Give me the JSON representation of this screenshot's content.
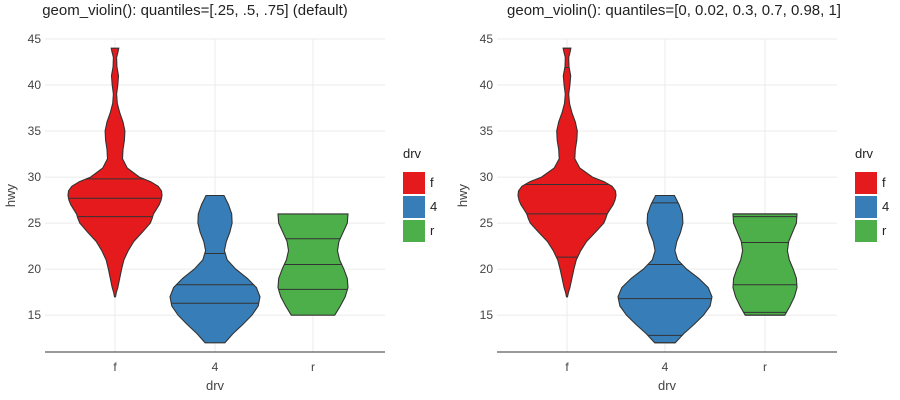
{
  "colors": {
    "f": "#e41a1c",
    "4": "#377eb8",
    "r": "#4daf4a",
    "grid": "#ebebeb",
    "axis": "#333333"
  },
  "chart_data": [
    {
      "type": "violin",
      "title": "geom_violin(): quantiles=[.25, .5, .75] (default)",
      "xlabel": "drv",
      "ylabel": "hwy",
      "ylim": [
        11,
        45
      ],
      "yticks": [
        15,
        20,
        25,
        30,
        35,
        40,
        45
      ],
      "categories": [
        "f",
        "4",
        "r"
      ],
      "grid": true,
      "legend": {
        "title": "drv",
        "position": "right",
        "entries": [
          "f",
          "4",
          "r"
        ]
      },
      "violins": [
        {
          "category": "f",
          "quantiles": [
            25.7,
            27.7,
            29.8
          ],
          "profile": [
            [
              17,
              0.01
            ],
            [
              17.5,
              0.03
            ],
            [
              18,
              0.06
            ],
            [
              19,
              0.1
            ],
            [
              20,
              0.14
            ],
            [
              21,
              0.19
            ],
            [
              22,
              0.28
            ],
            [
              23,
              0.4
            ],
            [
              24,
              0.58
            ],
            [
              25,
              0.75
            ],
            [
              25.5,
              0.79
            ],
            [
              26,
              0.82
            ],
            [
              26.5,
              0.88
            ],
            [
              27,
              0.94
            ],
            [
              27.5,
              0.98
            ],
            [
              28,
              1.0
            ],
            [
              28.5,
              0.99
            ],
            [
              29,
              0.92
            ],
            [
              29.5,
              0.76
            ],
            [
              30,
              0.52
            ],
            [
              31,
              0.26
            ],
            [
              32,
              0.16
            ],
            [
              33,
              0.17
            ],
            [
              34,
              0.2
            ],
            [
              35,
              0.21
            ],
            [
              36,
              0.17
            ],
            [
              37,
              0.1
            ],
            [
              38,
              0.05
            ],
            [
              39,
              0.035
            ],
            [
              40,
              0.06
            ],
            [
              41,
              0.075
            ],
            [
              42,
              0.04
            ],
            [
              43,
              0.035
            ],
            [
              43.5,
              0.06
            ],
            [
              44,
              0.08
            ]
          ]
        },
        {
          "category": "4",
          "quantiles": [
            16.3,
            18.3,
            21.7
          ],
          "profile": [
            [
              12,
              0.22
            ],
            [
              13,
              0.4
            ],
            [
              14,
              0.62
            ],
            [
              15,
              0.82
            ],
            [
              16,
              0.96
            ],
            [
              17,
              1.0
            ],
            [
              18,
              0.92
            ],
            [
              19,
              0.72
            ],
            [
              20,
              0.46
            ],
            [
              21,
              0.27
            ],
            [
              22,
              0.21
            ],
            [
              23,
              0.25
            ],
            [
              24,
              0.33
            ],
            [
              25,
              0.38
            ],
            [
              26,
              0.37
            ],
            [
              27,
              0.3
            ],
            [
              28,
              0.2
            ]
          ]
        },
        {
          "category": "r",
          "quantiles": [
            17.8,
            20.5,
            23.3
          ],
          "profile": [
            [
              15,
              0.62
            ],
            [
              16,
              0.78
            ],
            [
              17,
              0.92
            ],
            [
              18,
              1.0
            ],
            [
              19,
              0.98
            ],
            [
              20,
              0.88
            ],
            [
              21,
              0.76
            ],
            [
              22,
              0.7
            ],
            [
              23,
              0.74
            ],
            [
              24,
              0.86
            ],
            [
              25,
              0.98
            ],
            [
              26,
              1.0
            ]
          ]
        }
      ]
    },
    {
      "type": "violin",
      "title": "geom_violin(): quantiles=[0, 0.02, 0.3, 0.7, 0.98, 1]",
      "xlabel": "drv",
      "ylabel": "hwy",
      "ylim": [
        11,
        45
      ],
      "yticks": [
        15,
        20,
        25,
        30,
        35,
        40,
        45
      ],
      "categories": [
        "f",
        "4",
        "r"
      ],
      "grid": true,
      "legend": {
        "title": "drv",
        "position": "right",
        "entries": [
          "f",
          "4",
          "r"
        ]
      },
      "violins": [
        {
          "category": "f",
          "quantiles": [
            17,
            21.3,
            26.0,
            29.2,
            41.9,
            44
          ],
          "profile": [
            [
              17,
              0.01
            ],
            [
              17.5,
              0.03
            ],
            [
              18,
              0.06
            ],
            [
              19,
              0.1
            ],
            [
              20,
              0.14
            ],
            [
              21,
              0.19
            ],
            [
              22,
              0.28
            ],
            [
              23,
              0.4
            ],
            [
              24,
              0.58
            ],
            [
              25,
              0.75
            ],
            [
              25.5,
              0.79
            ],
            [
              26,
              0.82
            ],
            [
              26.5,
              0.88
            ],
            [
              27,
              0.94
            ],
            [
              27.5,
              0.98
            ],
            [
              28,
              1.0
            ],
            [
              28.5,
              0.99
            ],
            [
              29,
              0.92
            ],
            [
              29.5,
              0.76
            ],
            [
              30,
              0.52
            ],
            [
              31,
              0.26
            ],
            [
              32,
              0.16
            ],
            [
              33,
              0.17
            ],
            [
              34,
              0.2
            ],
            [
              35,
              0.21
            ],
            [
              36,
              0.17
            ],
            [
              37,
              0.1
            ],
            [
              38,
              0.05
            ],
            [
              39,
              0.035
            ],
            [
              40,
              0.06
            ],
            [
              41,
              0.075
            ],
            [
              42,
              0.04
            ],
            [
              43,
              0.035
            ],
            [
              43.5,
              0.06
            ],
            [
              44,
              0.08
            ]
          ]
        },
        {
          "category": "4",
          "quantiles": [
            12,
            12.8,
            16.8,
            20.5,
            27.2,
            28
          ],
          "profile": [
            [
              12,
              0.22
            ],
            [
              13,
              0.4
            ],
            [
              14,
              0.62
            ],
            [
              15,
              0.82
            ],
            [
              16,
              0.96
            ],
            [
              17,
              1.0
            ],
            [
              18,
              0.92
            ],
            [
              19,
              0.72
            ],
            [
              20,
              0.46
            ],
            [
              21,
              0.27
            ],
            [
              22,
              0.21
            ],
            [
              23,
              0.25
            ],
            [
              24,
              0.33
            ],
            [
              25,
              0.38
            ],
            [
              26,
              0.37
            ],
            [
              27,
              0.3
            ],
            [
              28,
              0.2
            ]
          ]
        },
        {
          "category": "r",
          "quantiles": [
            15,
            15.3,
            18.3,
            22.9,
            25.7,
            26
          ],
          "profile": [
            [
              15,
              0.62
            ],
            [
              16,
              0.78
            ],
            [
              17,
              0.92
            ],
            [
              18,
              1.0
            ],
            [
              19,
              0.98
            ],
            [
              20,
              0.88
            ],
            [
              21,
              0.76
            ],
            [
              22,
              0.7
            ],
            [
              23,
              0.74
            ],
            [
              24,
              0.86
            ],
            [
              25,
              0.98
            ],
            [
              26,
              1.0
            ]
          ]
        }
      ]
    }
  ]
}
